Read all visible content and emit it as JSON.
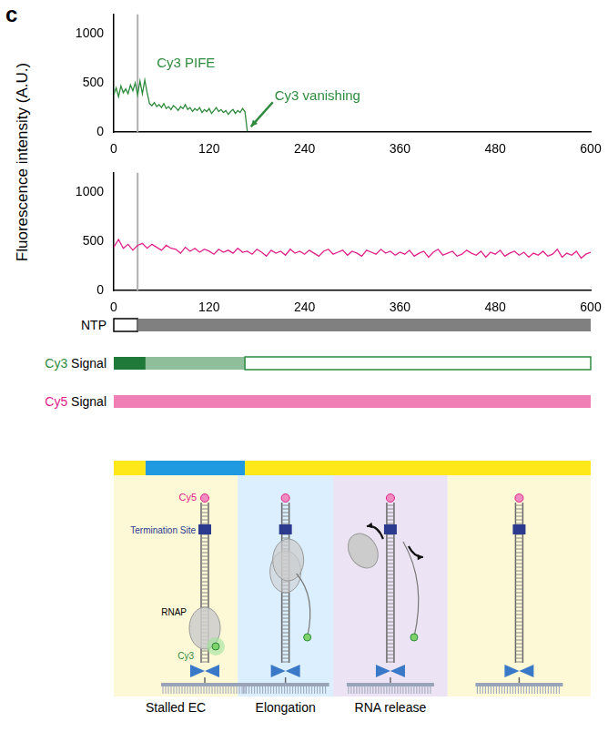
{
  "panel_label": "c",
  "y_label": "Fluorescence intensity (A.U.)",
  "chart_data": [
    {
      "type": "line",
      "color": "#2e8b3e",
      "x": [
        0,
        3,
        6,
        9,
        12,
        15,
        18,
        21,
        24,
        27,
        30,
        33,
        36,
        39,
        42,
        45,
        48,
        51,
        54,
        57,
        60,
        63,
        66,
        69,
        72,
        75,
        78,
        81,
        84,
        87,
        90,
        93,
        96,
        99,
        102,
        105,
        108,
        111,
        114,
        117,
        120,
        123,
        126,
        129,
        132,
        135,
        138,
        141,
        144,
        147,
        150,
        153,
        156,
        159,
        162,
        165,
        168
      ],
      "values": [
        380,
        450,
        360,
        470,
        400,
        440,
        390,
        480,
        420,
        500,
        380,
        520,
        390,
        530,
        400,
        290,
        270,
        300,
        260,
        280,
        250,
        290,
        240,
        260,
        230,
        270,
        250,
        220,
        260,
        240,
        280,
        230,
        250,
        210,
        240,
        220,
        250,
        200,
        230,
        210,
        240,
        190,
        220,
        250,
        210,
        230,
        200,
        220,
        180,
        210,
        230,
        190,
        220,
        200,
        240,
        210,
        10
      ],
      "xlim": [
        0,
        600
      ],
      "xticks": [
        0,
        120,
        240,
        360,
        480,
        600
      ],
      "ylim": [
        0,
        1200
      ],
      "yticks": [
        0,
        500,
        1000
      ],
      "grid": false,
      "vline_x": 30,
      "annotations": [
        "Cy3 PIFE",
        "Cy3 vanishing"
      ]
    },
    {
      "type": "line",
      "color": "#e0218a",
      "x": [
        0,
        6,
        12,
        18,
        24,
        30,
        36,
        42,
        48,
        54,
        60,
        66,
        72,
        78,
        84,
        90,
        96,
        102,
        108,
        114,
        120,
        126,
        132,
        138,
        144,
        150,
        156,
        162,
        168,
        174,
        180,
        186,
        192,
        198,
        204,
        210,
        216,
        222,
        228,
        234,
        240,
        246,
        252,
        258,
        264,
        270,
        276,
        282,
        288,
        294,
        300,
        306,
        312,
        318,
        324,
        330,
        336,
        342,
        348,
        354,
        360,
        366,
        372,
        378,
        384,
        390,
        396,
        402,
        408,
        414,
        420,
        426,
        432,
        438,
        444,
        450,
        456,
        462,
        468,
        474,
        480,
        486,
        492,
        498,
        504,
        510,
        516,
        522,
        528,
        534,
        540,
        546,
        552,
        558,
        564,
        570,
        576,
        582,
        588,
        594,
        600
      ],
      "values": [
        440,
        520,
        430,
        470,
        410,
        460,
        480,
        430,
        470,
        440,
        410,
        460,
        430,
        420,
        380,
        440,
        400,
        430,
        390,
        420,
        400,
        370,
        420,
        390,
        410,
        380,
        430,
        390,
        400,
        370,
        420,
        390,
        350,
        410,
        380,
        400,
        360,
        420,
        380,
        400,
        370,
        410,
        380,
        350,
        400,
        420,
        370,
        390,
        410,
        360,
        400,
        380,
        350,
        410,
        390,
        370,
        420,
        380,
        400,
        360,
        390,
        370,
        410,
        350,
        380,
        400,
        340,
        390,
        420,
        360,
        380,
        400,
        350,
        370,
        410,
        380,
        360,
        400,
        340,
        390,
        370,
        410,
        350,
        380,
        400,
        360,
        390,
        340,
        380,
        360,
        400,
        350,
        370,
        420,
        340,
        380,
        360,
        400,
        330,
        370,
        390
      ],
      "xlim": [
        0,
        600
      ],
      "xticks": [
        0,
        120,
        240,
        360,
        480,
        600
      ],
      "ylim": [
        0,
        1200
      ],
      "yticks": [
        0,
        500,
        1000
      ],
      "grid": false,
      "vline_x": 30
    }
  ],
  "tracks": [
    {
      "label": "NTP",
      "label_color": "#000000",
      "segments": [
        {
          "start": 0,
          "end": 30,
          "fill": "#ffffff",
          "stroke": "#000000"
        },
        {
          "start": 30,
          "end": 600,
          "fill": "#808080"
        }
      ]
    },
    {
      "label": "Cy3 Signal",
      "label_color": "#2e8b3e",
      "segments": [
        {
          "start": 0,
          "end": 40,
          "fill": "#1f7a3a"
        },
        {
          "start": 40,
          "end": 165,
          "fill": "#8fbf9a"
        },
        {
          "start": 165,
          "end": 600,
          "fill": "#ffffff",
          "stroke": "#2e8b3e"
        }
      ]
    },
    {
      "label": "Cy5 Signal",
      "label_color": "#e0218a",
      "segments": [
        {
          "start": 0,
          "end": 600,
          "fill": "#ef7fb5"
        }
      ]
    }
  ],
  "phase_bar": {
    "segments": [
      {
        "start": 0,
        "end": 40,
        "fill": "#ffe81a"
      },
      {
        "start": 40,
        "end": 165,
        "fill": "#1f9ae0"
      },
      {
        "start": 165,
        "end": 600,
        "fill": "#ffe81a"
      }
    ]
  },
  "diagram": {
    "labels": {
      "cy5": "Cy5",
      "termination": "Termination Site",
      "rnap": "RNAP",
      "cy3": "Cy3"
    },
    "stages": [
      "Stalled EC",
      "Elongation",
      "RNA release",
      null
    ]
  }
}
